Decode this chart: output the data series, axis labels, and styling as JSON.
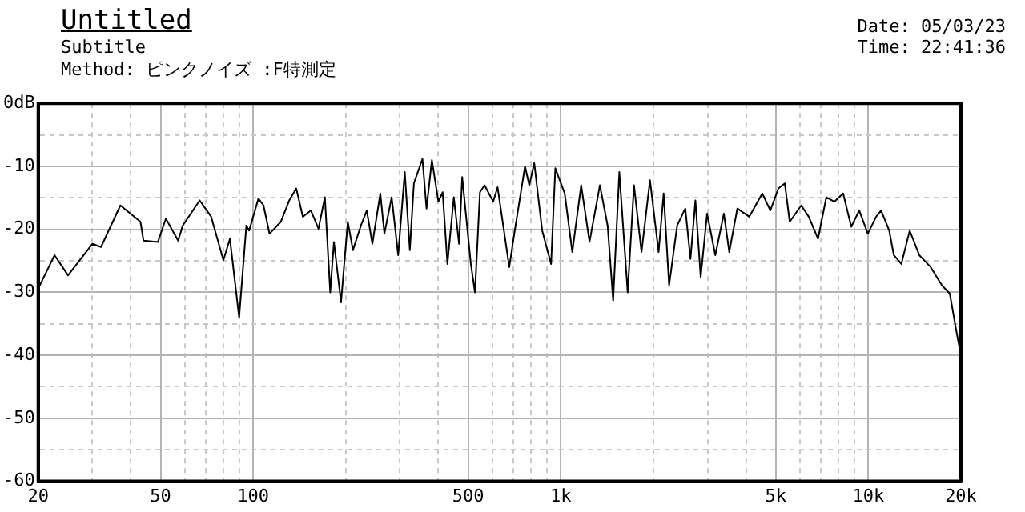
{
  "chart_data": {
    "type": "line",
    "title": "Untitled",
    "subtitle": "Subtitle",
    "annotations": [
      "Method:  ピンクノイズ  :F特測定",
      "Date: 05/03/23",
      "Time: 22:41:36"
    ],
    "series": [
      {
        "color": "#000000",
        "x": [
          20,
          22.6,
          25,
          30,
          32,
          37,
          43,
          44,
          49,
          52,
          57,
          59,
          67,
          73,
          80,
          84,
          90,
          95,
          97,
          104,
          108,
          113,
          123,
          131,
          138,
          145,
          154,
          163,
          171,
          178,
          183,
          193,
          203,
          211,
          224,
          234,
          244,
          259,
          267,
          282,
          296,
          311,
          323,
          333,
          355,
          366,
          381,
          400,
          413,
          428,
          449,
          467,
          478,
          510,
          526,
          546,
          565,
          603,
          623,
          680,
          706,
          765,
          790,
          820,
          870,
          930,
          960,
          1030,
          1090,
          1165,
          1240,
          1340,
          1420,
          1480,
          1550,
          1650,
          1730,
          1830,
          1950,
          2080,
          2160,
          2250,
          2390,
          2540,
          2640,
          2740,
          2850,
          2990,
          3180,
          3390,
          3530,
          3750,
          4100,
          4520,
          4800,
          5100,
          5350,
          5550,
          6050,
          6400,
          6860,
          7300,
          7760,
          8280,
          8800,
          9340,
          9960,
          10600,
          11000,
          11690,
          12100,
          12800,
          13630,
          14640,
          15950,
          17350,
          18400,
          19300,
          20000
        ],
        "values": [
          -29.4,
          -24.1,
          -27.3,
          -22.3,
          -22.8,
          -16.2,
          -18.8,
          -21.8,
          -22,
          -18.3,
          -21.8,
          -19.4,
          -15.4,
          -18,
          -24.9,
          -21.5,
          -34,
          -19.4,
          -20.2,
          -15.1,
          -16.2,
          -20.7,
          -18.8,
          -15.4,
          -13.5,
          -18,
          -17,
          -19.9,
          -14.9,
          -30,
          -22,
          -31.6,
          -18.8,
          -23.3,
          -19.4,
          -17,
          -22.3,
          -14.3,
          -20.7,
          -14.9,
          -24.1,
          -10.9,
          -23.3,
          -12.7,
          -8.8,
          -16.7,
          -9,
          -15.6,
          -14.1,
          -25.5,
          -14.9,
          -22.3,
          -11.7,
          -25.5,
          -30,
          -14.1,
          -13,
          -15.6,
          -13.3,
          -26,
          -20.7,
          -10,
          -13,
          -9.5,
          -20.2,
          -25.5,
          -10.3,
          -14.3,
          -23.6,
          -13,
          -22,
          -13,
          -19.4,
          -31.3,
          -10.9,
          -30,
          -13,
          -23.6,
          -12.2,
          -23.6,
          -14.3,
          -28.9,
          -19.4,
          -16.7,
          -24.7,
          -15.4,
          -27.6,
          -17.5,
          -24.1,
          -17.5,
          -23.6,
          -16.7,
          -18,
          -14.3,
          -17,
          -13.5,
          -12.7,
          -18.8,
          -16.2,
          -18,
          -21.5,
          -14.9,
          -15.6,
          -14.3,
          -19.6,
          -17,
          -20.7,
          -18,
          -17,
          -20.2,
          -24.1,
          -25.5,
          -20.2,
          -24.1,
          -26,
          -28.9,
          -30.2,
          -36,
          -40
        ]
      }
    ],
    "log": "x",
    "xlim": [
      20,
      20000
    ],
    "xticks": [
      20,
      {
        "value": 30,
        "label": null
      },
      {
        "value": 40,
        "label": null
      },
      50,
      {
        "value": 60,
        "label": null
      },
      {
        "value": 70,
        "label": null
      },
      {
        "value": 80,
        "label": null
      },
      {
        "value": 90,
        "label": null
      },
      100,
      {
        "value": 200,
        "label": null
      },
      {
        "value": 300,
        "label": null
      },
      {
        "value": 400,
        "label": null
      },
      500,
      {
        "value": 600,
        "label": null
      },
      {
        "value": 700,
        "label": null
      },
      {
        "value": 800,
        "label": null
      },
      {
        "value": 900,
        "label": null
      },
      {
        "value": 1000,
        "label": "1k"
      },
      {
        "value": 2000,
        "label": null
      },
      {
        "value": 3000,
        "label": null
      },
      {
        "value": 4000,
        "label": null
      },
      {
        "value": 5000,
        "label": "5k"
      },
      {
        "value": 6000,
        "label": null
      },
      {
        "value": 7000,
        "label": null
      },
      {
        "value": 8000,
        "label": null
      },
      {
        "value": 9000,
        "label": null
      },
      {
        "value": 10000,
        "label": "10k"
      },
      {
        "value": 20000,
        "label": "20k"
      }
    ],
    "ylim": [
      -60,
      0
    ],
    "yticks": [
      -60,
      {
        "value": -55,
        "label": null
      },
      -50,
      {
        "value": -45,
        "label": null
      },
      -40,
      {
        "value": -35,
        "label": null
      },
      -30,
      {
        "value": -25,
        "label": null
      },
      -20,
      {
        "value": -15,
        "label": null
      },
      -10,
      {
        "value": -5,
        "label": null
      },
      {
        "value": 0,
        "label": "0dB"
      }
    ],
    "grid": true,
    "legend": false,
    "marker": "none",
    "line_style": "solid"
  }
}
